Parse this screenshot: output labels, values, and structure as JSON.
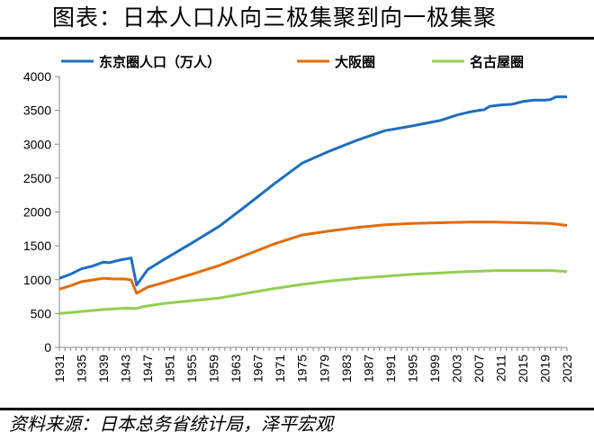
{
  "title": "图表：日本人口从向三极集聚到向一极集聚",
  "source": "资料来源：日本总务省统计局，泽平宏观",
  "chart_data": {
    "type": "line",
    "ylim": [
      0,
      4000
    ],
    "yticks": [
      0,
      500,
      1000,
      1500,
      2000,
      2500,
      3000,
      3500,
      4000
    ],
    "xlim": [
      1931,
      2023
    ],
    "xticks": [
      1931,
      1935,
      1939,
      1943,
      1947,
      1951,
      1955,
      1959,
      1963,
      1967,
      1971,
      1975,
      1979,
      1983,
      1987,
      1991,
      1995,
      1999,
      2003,
      2007,
      2011,
      2015,
      2019,
      2023
    ],
    "legend_position": "top",
    "grid": false,
    "series": [
      {
        "name": "东京圈人口（万人）",
        "color": "#1f6fbf",
        "points": [
          [
            1931,
            1020
          ],
          [
            1933,
            1080
          ],
          [
            1935,
            1160
          ],
          [
            1937,
            1200
          ],
          [
            1939,
            1260
          ],
          [
            1940,
            1250
          ],
          [
            1942,
            1290
          ],
          [
            1944,
            1320
          ],
          [
            1945,
            920
          ],
          [
            1947,
            1150
          ],
          [
            1950,
            1300
          ],
          [
            1955,
            1540
          ],
          [
            1960,
            1790
          ],
          [
            1965,
            2100
          ],
          [
            1970,
            2420
          ],
          [
            1975,
            2720
          ],
          [
            1980,
            2900
          ],
          [
            1985,
            3060
          ],
          [
            1990,
            3200
          ],
          [
            1995,
            3270
          ],
          [
            2000,
            3350
          ],
          [
            2003,
            3430
          ],
          [
            2005,
            3470
          ],
          [
            2007,
            3500
          ],
          [
            2008,
            3510
          ],
          [
            2009,
            3560
          ],
          [
            2011,
            3580
          ],
          [
            2013,
            3590
          ],
          [
            2015,
            3630
          ],
          [
            2017,
            3650
          ],
          [
            2019,
            3650
          ],
          [
            2020,
            3660
          ],
          [
            2021,
            3700
          ],
          [
            2023,
            3700
          ]
        ]
      },
      {
        "name": "大阪圈",
        "color": "#e36c0a",
        "points": [
          [
            1931,
            860
          ],
          [
            1933,
            910
          ],
          [
            1935,
            970
          ],
          [
            1937,
            995
          ],
          [
            1939,
            1020
          ],
          [
            1941,
            1010
          ],
          [
            1943,
            1010
          ],
          [
            1944,
            995
          ],
          [
            1945,
            800
          ],
          [
            1947,
            890
          ],
          [
            1950,
            960
          ],
          [
            1955,
            1080
          ],
          [
            1960,
            1210
          ],
          [
            1965,
            1370
          ],
          [
            1970,
            1530
          ],
          [
            1975,
            1660
          ],
          [
            1980,
            1720
          ],
          [
            1985,
            1770
          ],
          [
            1990,
            1810
          ],
          [
            1995,
            1830
          ],
          [
            2000,
            1840
          ],
          [
            2005,
            1850
          ],
          [
            2010,
            1850
          ],
          [
            2015,
            1840
          ],
          [
            2020,
            1830
          ],
          [
            2023,
            1800
          ]
        ]
      },
      {
        "name": "名古屋圈",
        "color": "#92d050",
        "points": [
          [
            1931,
            500
          ],
          [
            1935,
            530
          ],
          [
            1939,
            560
          ],
          [
            1943,
            580
          ],
          [
            1945,
            575
          ],
          [
            1946,
            600
          ],
          [
            1950,
            650
          ],
          [
            1955,
            690
          ],
          [
            1960,
            730
          ],
          [
            1965,
            800
          ],
          [
            1970,
            870
          ],
          [
            1975,
            930
          ],
          [
            1980,
            980
          ],
          [
            1985,
            1020
          ],
          [
            1990,
            1050
          ],
          [
            1995,
            1080
          ],
          [
            2000,
            1100
          ],
          [
            2005,
            1120
          ],
          [
            2010,
            1135
          ],
          [
            2015,
            1135
          ],
          [
            2020,
            1135
          ],
          [
            2023,
            1120
          ]
        ]
      }
    ]
  }
}
